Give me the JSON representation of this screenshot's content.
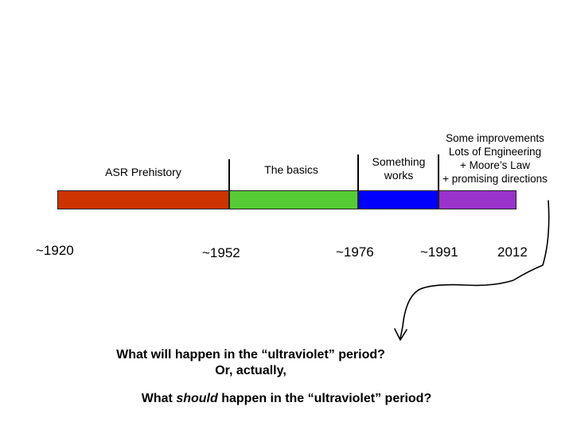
{
  "periods": [
    {
      "label": "ASR Prehistory",
      "color": "#cc3300"
    },
    {
      "label": "The basics",
      "color": "#55cc33"
    },
    {
      "label": "Something works",
      "line1": "Something",
      "line2": "works",
      "color": "#0000ff"
    },
    {
      "label": "Some improvements / Lots of Engineering / + Moore's Law / + promising directions",
      "line1": "Some improvements",
      "line2": "Lots of Engineering",
      "line3": "+ Moore’s Law",
      "line4": "+ promising directions",
      "color": "#9933cc"
    }
  ],
  "years": [
    "~1920",
    "~1952",
    "~1976",
    "~1991",
    "2012"
  ],
  "question": {
    "line1": "What will happen in the “ultraviolet” period?",
    "line2": "Or, actually,",
    "line3_pre": "What ",
    "line3_em": "should",
    "line3_post": " happen in the “ultraviolet” period?"
  }
}
